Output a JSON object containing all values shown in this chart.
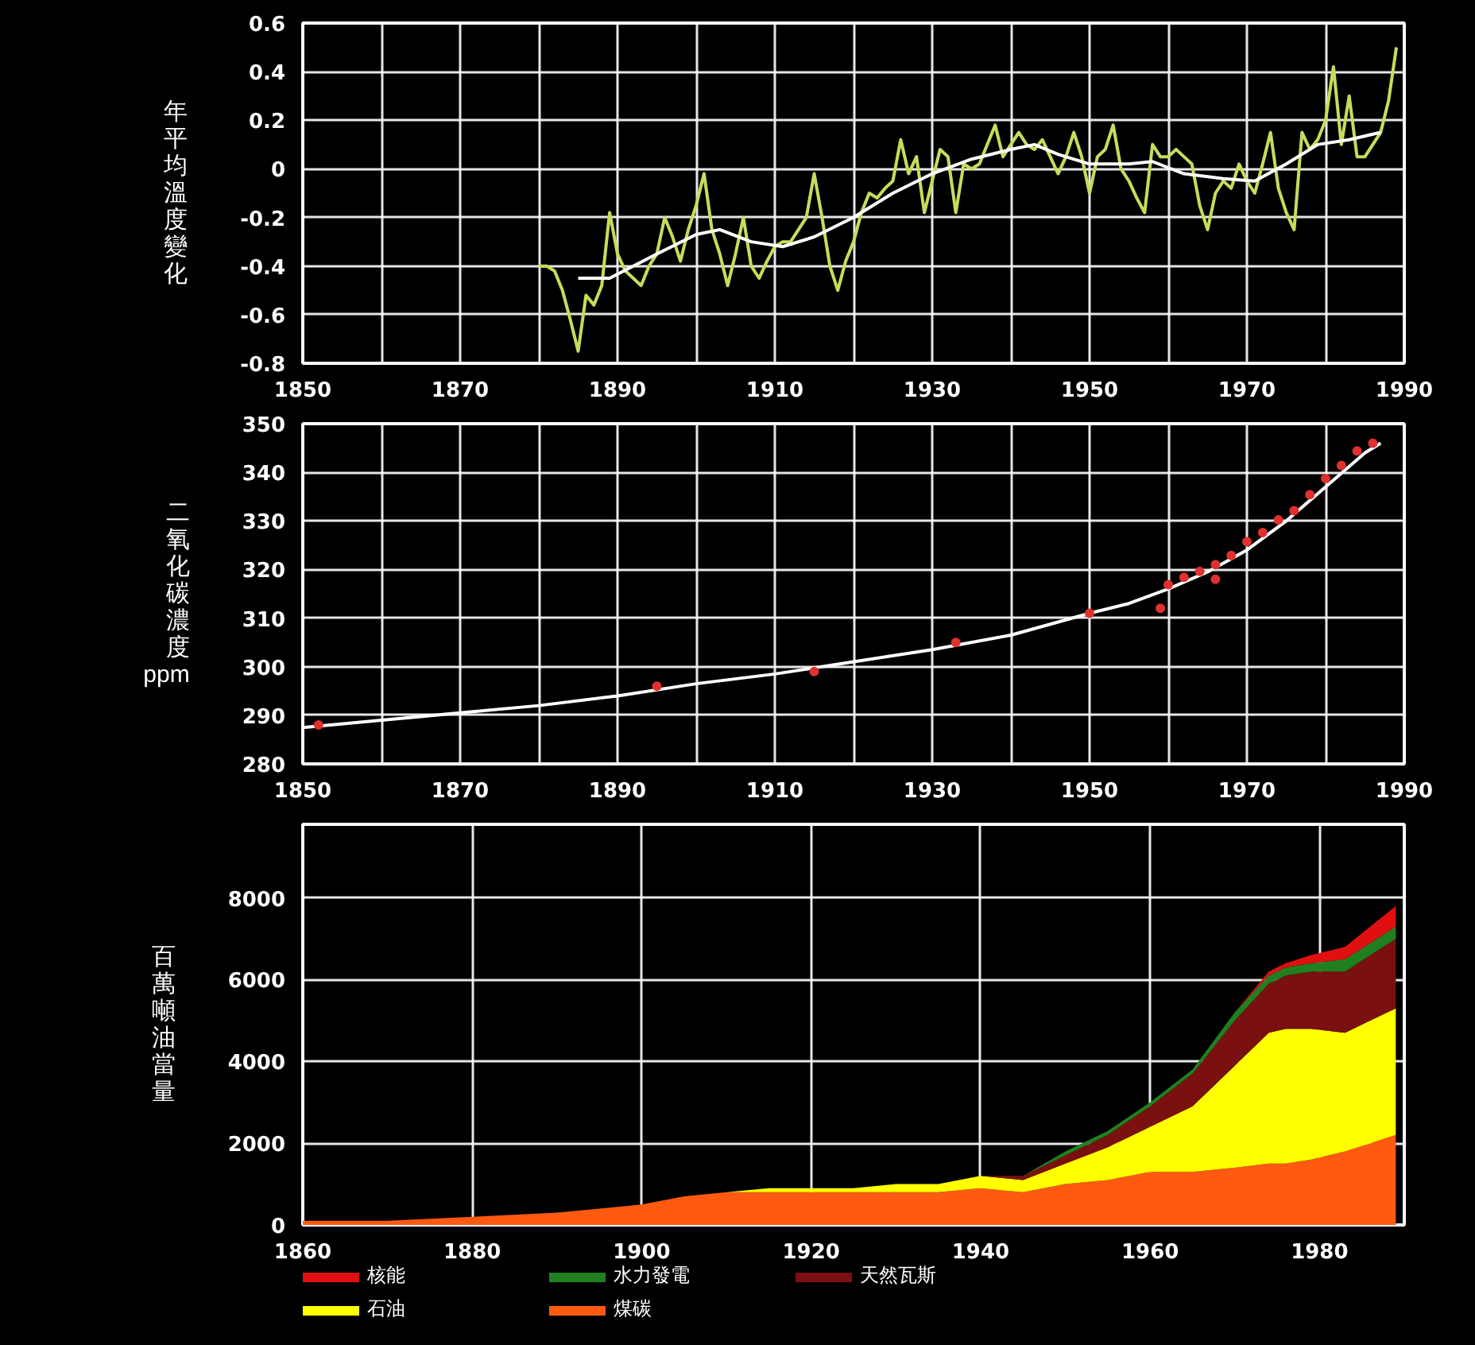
{
  "chart_data": [
    {
      "type": "line",
      "ylabel": "年平均溫度變化",
      "xlim": [
        1850,
        1990
      ],
      "ylim": [
        -0.8,
        0.6
      ],
      "xticks": [
        1850,
        {
          "value": 1860,
          "label": null
        },
        1870,
        {
          "value": 1880,
          "label": null
        },
        1890,
        {
          "value": 1900,
          "label": null
        },
        1910,
        {
          "value": 1920,
          "label": null
        },
        1930,
        {
          "value": 1940,
          "label": null
        },
        1950,
        {
          "value": 1960,
          "label": null
        },
        1970,
        {
          "value": 1980,
          "label": null
        },
        1990
      ],
      "yticks": [
        -0.8,
        -0.6,
        -0.4,
        -0.2,
        0,
        0.2,
        0.4,
        0.6
      ],
      "grid": true,
      "line_style": "solid",
      "series": [
        {
          "color": "#c8dc5a",
          "x": [
            1880,
            1881,
            1882,
            1883,
            1884,
            1885,
            1886,
            1887,
            1888,
            1889,
            1890,
            1891,
            1892,
            1893,
            1894,
            1895,
            1896,
            1897,
            1898,
            1899,
            1900,
            1901,
            1902,
            1903,
            1904,
            1905,
            1906,
            1907,
            1908,
            1909,
            1910,
            1911,
            1912,
            1913,
            1914,
            1915,
            1916,
            1917,
            1918,
            1919,
            1920,
            1921,
            1922,
            1923,
            1924,
            1925,
            1926,
            1927,
            1928,
            1929,
            1930,
            1931,
            1932,
            1933,
            1934,
            1935,
            1936,
            1937,
            1938,
            1939,
            1940,
            1941,
            1942,
            1943,
            1944,
            1945,
            1946,
            1947,
            1948,
            1949,
            1950,
            1951,
            1952,
            1953,
            1954,
            1955,
            1956,
            1957,
            1958,
            1959,
            1960,
            1961,
            1962,
            1963,
            1964,
            1965,
            1966,
            1967,
            1968,
            1969,
            1970,
            1971,
            1972,
            1973,
            1974,
            1975,
            1976,
            1977,
            1978,
            1979,
            1980,
            1981,
            1982,
            1983,
            1984,
            1985,
            1986,
            1987,
            1988,
            1989
          ],
          "values": [
            -0.4,
            -0.4,
            -0.42,
            -0.5,
            -0.62,
            -0.75,
            -0.52,
            -0.56,
            -0.48,
            -0.18,
            -0.35,
            -0.42,
            -0.45,
            -0.48,
            -0.4,
            -0.35,
            -0.2,
            -0.28,
            -0.38,
            -0.25,
            -0.15,
            -0.02,
            -0.25,
            -0.35,
            -0.48,
            -0.35,
            -0.2,
            -0.4,
            -0.45,
            -0.38,
            -0.32,
            -0.3,
            -0.3,
            -0.25,
            -0.2,
            -0.02,
            -0.2,
            -0.4,
            -0.5,
            -0.38,
            -0.3,
            -0.18,
            -0.1,
            -0.12,
            -0.08,
            -0.05,
            0.12,
            -0.02,
            0.05,
            -0.18,
            -0.05,
            0.08,
            0.05,
            -0.18,
            0.02,
            0.0,
            0.02,
            0.1,
            0.18,
            0.05,
            0.1,
            0.15,
            0.1,
            0.08,
            0.12,
            0.05,
            -0.02,
            0.05,
            0.15,
            0.05,
            -0.1,
            0.05,
            0.08,
            0.18,
            0.0,
            -0.05,
            -0.12,
            -0.18,
            0.1,
            0.05,
            0.05,
            0.08,
            0.05,
            0.02,
            -0.15,
            -0.25,
            -0.1,
            -0.05,
            -0.08,
            0.02,
            -0.05,
            -0.1,
            0.02,
            0.15,
            -0.08,
            -0.18,
            -0.25,
            0.15,
            0.08,
            0.12,
            0.2,
            0.42,
            0.1,
            0.3,
            0.05,
            0.05,
            0.1,
            0.15,
            0.28,
            0.5
          ]
        },
        {
          "color": "#ffffff",
          "x": [
            1885,
            1889,
            1895,
            1900,
            1903,
            1907,
            1911,
            1915,
            1920,
            1925,
            1930,
            1935,
            1940,
            1943,
            1946,
            1950,
            1955,
            1958,
            1962,
            1967,
            1971,
            1975,
            1979,
            1983,
            1987
          ],
          "values": [
            -0.45,
            -0.45,
            -0.35,
            -0.27,
            -0.25,
            -0.3,
            -0.32,
            -0.28,
            -0.2,
            -0.1,
            -0.02,
            0.04,
            0.08,
            0.1,
            0.06,
            0.02,
            0.02,
            0.03,
            -0.02,
            -0.04,
            -0.05,
            0.02,
            0.1,
            0.12,
            0.15
          ]
        }
      ]
    },
    {
      "type": "line",
      "ylabel": "二氧化碳濃度ppm",
      "xlim": [
        1850,
        1990
      ],
      "ylim": [
        280,
        350
      ],
      "xticks": [
        1850,
        {
          "value": 1860,
          "label": null
        },
        1870,
        {
          "value": 1880,
          "label": null
        },
        1890,
        {
          "value": 1900,
          "label": null
        },
        1910,
        {
          "value": 1920,
          "label": null
        },
        1930,
        {
          "value": 1940,
          "label": null
        },
        1950,
        {
          "value": 1960,
          "label": null
        },
        1970,
        {
          "value": 1980,
          "label": null
        },
        1990
      ],
      "yticks": [
        280,
        290,
        300,
        310,
        320,
        330,
        340,
        350
      ],
      "grid": true,
      "line_style": "solid",
      "series": [
        {
          "color": "#ffffff",
          "x": [
            1850,
            1860,
            1870,
            1880,
            1890,
            1900,
            1910,
            1920,
            1930,
            1940,
            1950,
            1955,
            1960,
            1965,
            1970,
            1975,
            1980,
            1985,
            1987
          ],
          "values": [
            287.5,
            289,
            290.5,
            292,
            294,
            296.5,
            298.5,
            301,
            303.5,
            306.5,
            311,
            313,
            316,
            319.5,
            324,
            330,
            337,
            344,
            346
          ]
        },
        {
          "type": "scatter",
          "marker": "circle",
          "color": "#e03030",
          "x": [
            1852,
            1895,
            1915,
            1933,
            1950,
            1959,
            1960,
            1962,
            1964,
            1966,
            1966,
            1968,
            1970,
            1972,
            1974,
            1976,
            1978,
            1980,
            1982,
            1984,
            1986
          ],
          "values": [
            288,
            296,
            299,
            305,
            311,
            312,
            316.9,
            318.4,
            319.6,
            318,
            321,
            322.9,
            325.7,
            327.6,
            330.2,
            332.1,
            335.4,
            338.7,
            341.4,
            344.4,
            346
          ]
        }
      ]
    },
    {
      "type": "area",
      "stacked": true,
      "ylabel": "百萬噸油當量",
      "xlim": [
        1860,
        1990
      ],
      "ylim": [
        0,
        9800
      ],
      "xticks": [
        1860,
        1880,
        1900,
        1920,
        1940,
        1960,
        1980
      ],
      "yticks": [
        0,
        2000,
        4000,
        6000,
        8000
      ],
      "grid": true,
      "legend": "bottom",
      "x": [
        1860,
        1870,
        1880,
        1890,
        1900,
        1905,
        1910,
        1915,
        1920,
        1925,
        1930,
        1935,
        1940,
        1945,
        1950,
        1955,
        1960,
        1965,
        1970,
        1974,
        1976,
        1979,
        1983,
        1986,
        1989
      ],
      "series": [
        {
          "name": "煤碳",
          "color": "#ff5a10",
          "values": [
            100,
            100,
            200,
            300,
            500,
            700,
            800,
            800,
            800,
            800,
            800,
            800,
            900,
            800,
            1000,
            1100,
            1300,
            1300,
            1400,
            1500,
            1500,
            1600,
            1800,
            2000,
            2200
          ]
        },
        {
          "name": "石油",
          "color": "#ffff00",
          "values": [
            0,
            0,
            0,
            0,
            0,
            0,
            0,
            100,
            100,
            100,
            200,
            200,
            300,
            300,
            500,
            800,
            1100,
            1600,
            2500,
            3200,
            3300,
            3200,
            2900,
            3000,
            3100
          ]
        },
        {
          "name": "天然瓦斯",
          "color": "#7a1010",
          "values": [
            0,
            0,
            0,
            0,
            0,
            0,
            0,
            0,
            0,
            0,
            0,
            0,
            0,
            100,
            200,
            300,
            500,
            800,
            1100,
            1200,
            1300,
            1400,
            1500,
            1600,
            1700
          ]
        },
        {
          "name": "水力發電",
          "color": "#208020",
          "values": [
            0,
            0,
            0,
            0,
            0,
            0,
            0,
            0,
            0,
            0,
            0,
            0,
            0,
            0,
            100,
            100,
            100,
            100,
            200,
            200,
            200,
            200,
            300,
            300,
            300
          ]
        },
        {
          "name": "核能",
          "color": "#e01010",
          "values": [
            0,
            0,
            0,
            0,
            0,
            0,
            0,
            0,
            0,
            0,
            0,
            0,
            0,
            0,
            0,
            0,
            0,
            0,
            0,
            100,
            100,
            200,
            300,
            400,
            500
          ]
        }
      ]
    }
  ]
}
